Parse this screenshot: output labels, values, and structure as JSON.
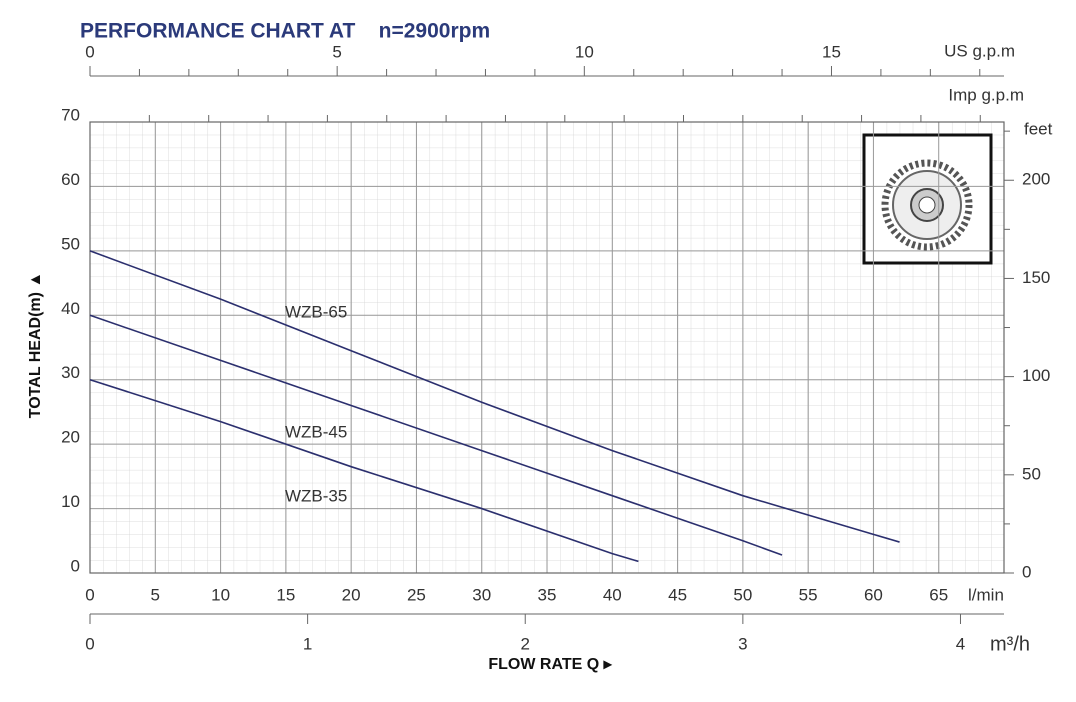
{
  "chart_data": {
    "type": "line",
    "title": "PERFORMANCE CHART AT    n=2900rpm",
    "y_label": "TOTAL HEAD(m) ▲",
    "x_label": "FLOW RATE Q ▸",
    "x_unit": "l/min",
    "xlim": [
      0,
      70
    ],
    "xticks": [
      0,
      5,
      10,
      15,
      20,
      25,
      30,
      35,
      40,
      45,
      50,
      55,
      60,
      65
    ],
    "ylim": [
      0,
      70
    ],
    "yticks": [
      0,
      10,
      20,
      30,
      40,
      50,
      60,
      70
    ],
    "grid": true,
    "series": [
      {
        "name": "WZB-65",
        "color": "#2b2f6e",
        "x": [
          0,
          10,
          20,
          30,
          40,
          50,
          60,
          62
        ],
        "values": [
          50,
          42.5,
          34.5,
          26.5,
          19,
          12,
          6,
          4.8
        ]
      },
      {
        "name": "WZB-45",
        "color": "#2b2f6e",
        "x": [
          0,
          10,
          20,
          30,
          40,
          50,
          53
        ],
        "values": [
          40,
          33,
          26,
          19,
          12,
          5,
          2.8
        ]
      },
      {
        "name": "WZB-35",
        "color": "#2b2f6e",
        "x": [
          0,
          10,
          20,
          30,
          40,
          42
        ],
        "values": [
          30,
          23.5,
          16.5,
          10,
          3,
          1.8
        ]
      }
    ],
    "us_gpm": {
      "label": "US g.p.m",
      "lim": [
        0,
        18.49
      ],
      "ticks": [
        0,
        5,
        10,
        15
      ],
      "minor_ticks": [
        1,
        2,
        3,
        4,
        6,
        7,
        8,
        9,
        11,
        12,
        13,
        14,
        16,
        17,
        18
      ]
    },
    "imp_gpm": {
      "label": "Imp g.p.m",
      "lim": [
        0,
        15.4
      ],
      "minor_ticks": [
        1,
        2,
        3,
        4,
        5,
        6,
        7,
        8,
        9,
        10,
        11,
        12,
        13,
        14,
        15
      ]
    },
    "m3h": {
      "label": "m³/h",
      "lim": [
        0,
        4.2
      ],
      "ticks": [
        0,
        1,
        2,
        3,
        4
      ]
    },
    "feet": {
      "label": "feet",
      "lim": [
        0,
        229.66
      ],
      "ticks": [
        0,
        50,
        100,
        150,
        200
      ],
      "minor_ticks": [
        25,
        75,
        125,
        175,
        225
      ]
    }
  }
}
